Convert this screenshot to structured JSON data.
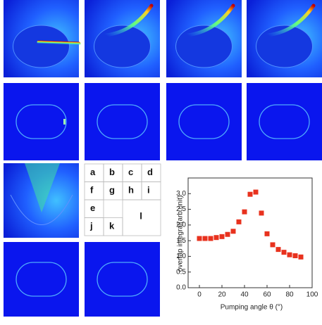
{
  "chart_data": {
    "type": "scatter",
    "x": [
      0,
      5,
      10,
      15,
      20,
      25,
      30,
      35,
      40,
      45,
      50,
      55,
      60,
      65,
      70,
      75,
      80,
      85,
      90
    ],
    "values": [
      1.57,
      1.57,
      1.57,
      1.6,
      1.63,
      1.7,
      1.8,
      2.1,
      2.42,
      2.98,
      3.05,
      2.38,
      1.72,
      1.37,
      1.22,
      1.13,
      1.05,
      1.02,
      0.98
    ],
    "color": "#e8321e",
    "x_label": "Pumping angle θ (°)",
    "y_label": "overlap integral(arb.unit)",
    "xlim": [
      -10,
      100
    ],
    "ylim": [
      0,
      3.5
    ],
    "xticks": [
      0,
      20,
      40,
      60,
      80,
      100
    ],
    "yticks": [
      {
        "value": 0,
        "label": "0.0"
      },
      {
        "value": 0.5,
        "label": "0.5"
      },
      {
        "value": 1,
        "label": "1.0"
      },
      {
        "value": 1.5,
        "label": "1.5"
      },
      {
        "value": 2,
        "label": "2.0"
      },
      {
        "value": 2.5,
        "label": "2.5"
      },
      {
        "value": 3,
        "label": "3.0"
      }
    ]
  },
  "panel_key": [
    "a",
    "b",
    "c",
    "d",
    "f",
    "g",
    "h",
    "i",
    "e",
    "j",
    "k",
    "l"
  ]
}
